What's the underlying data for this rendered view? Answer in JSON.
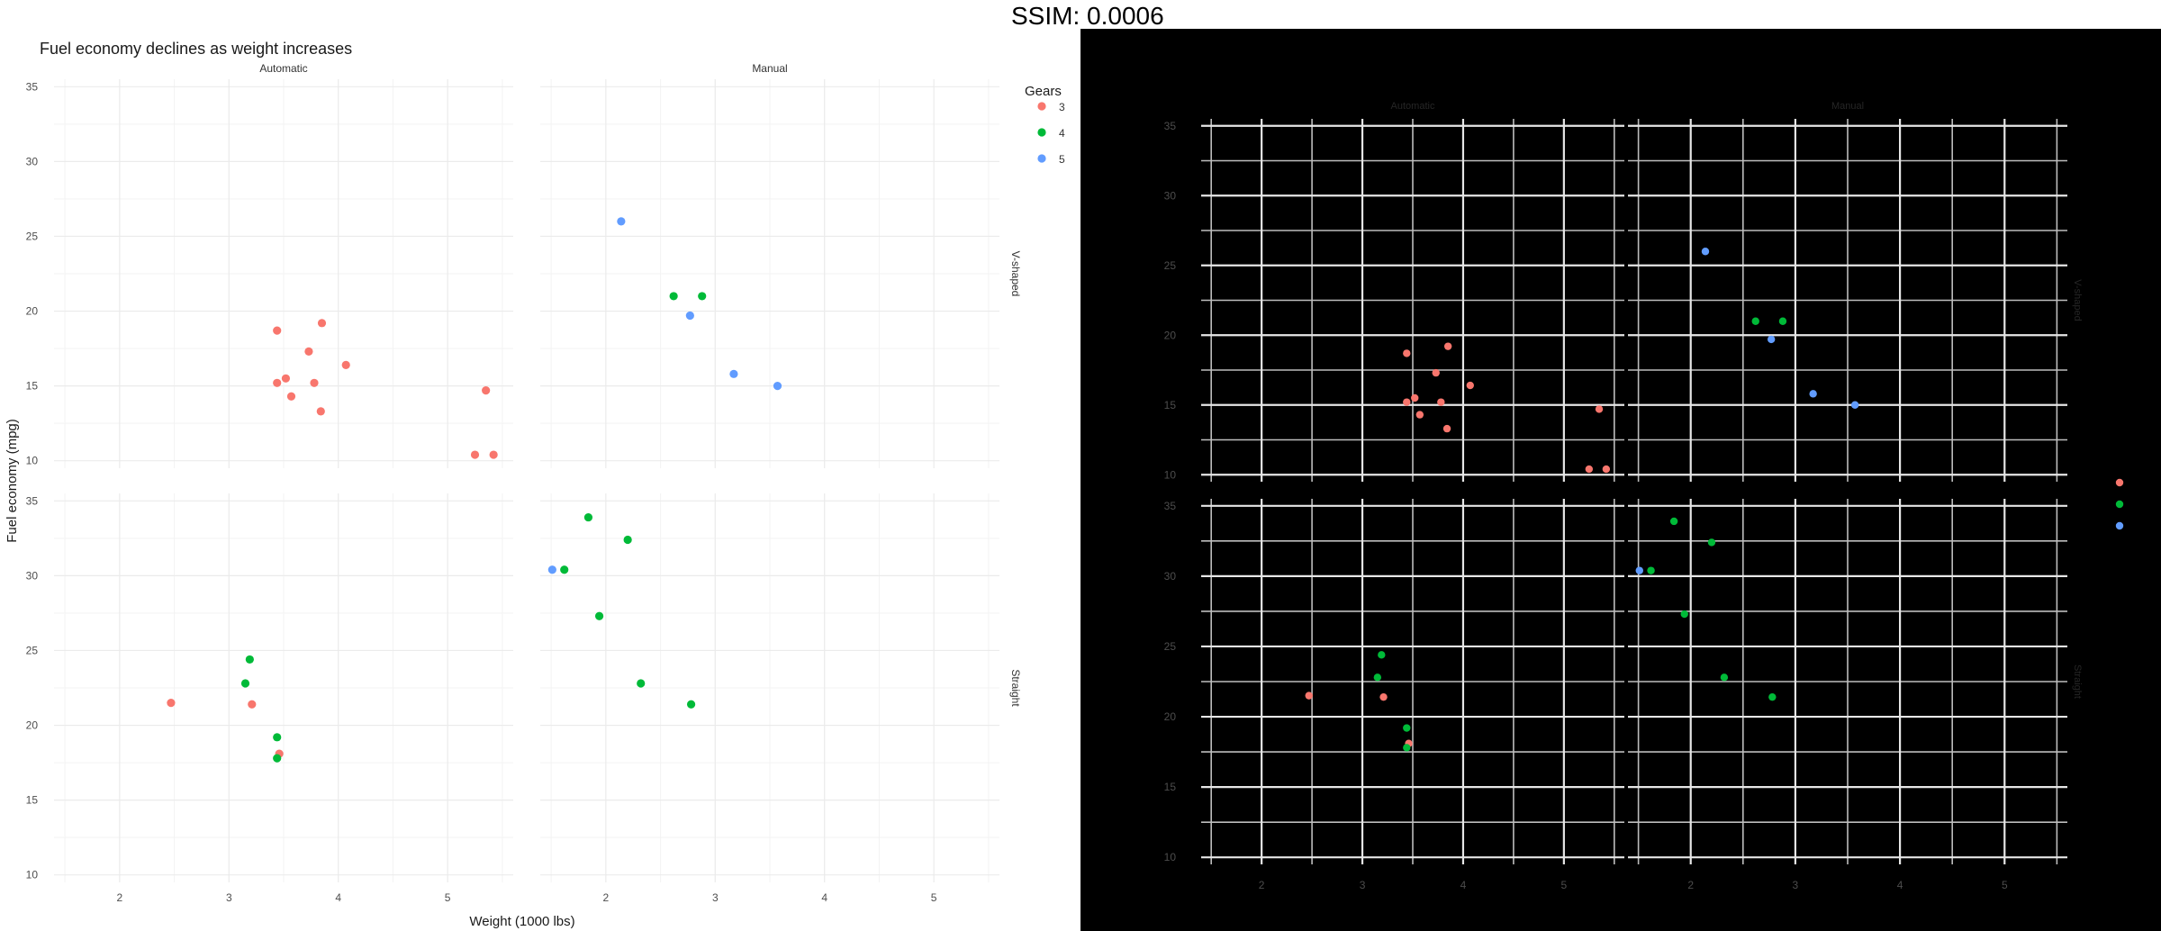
{
  "overlay": {
    "ssim_label": "SSIM: 0.0006"
  },
  "chart_data": {
    "type": "scatter",
    "title": "Fuel economy declines as weight increases",
    "xlabel": "Weight (1000 lbs)",
    "ylabel": "Fuel economy (mpg)",
    "xlim": [
      1.4,
      5.6
    ],
    "ylim": [
      9.5,
      35.5
    ],
    "x_ticks": [
      2,
      3,
      4,
      5
    ],
    "y_ticks": [
      10,
      15,
      20,
      25,
      30,
      35
    ],
    "facet_cols": [
      "Automatic",
      "Manual"
    ],
    "facet_rows": [
      "V-shaped",
      "Straight"
    ],
    "legend": {
      "title": "Gears",
      "position": "right-top",
      "entries": [
        "3",
        "4",
        "5"
      ]
    },
    "colors": {
      "3": "#F8766D",
      "4": "#00BA38",
      "5": "#619CFF"
    },
    "grid": true,
    "panels": [
      {
        "row": 0,
        "col": 0,
        "points": [
          {
            "x": 3.44,
            "y": 18.7,
            "g": "3"
          },
          {
            "x": 3.57,
            "y": 14.3,
            "g": "3"
          },
          {
            "x": 4.07,
            "y": 16.4,
            "g": "3"
          },
          {
            "x": 3.73,
            "y": 17.3,
            "g": "3"
          },
          {
            "x": 3.78,
            "y": 15.2,
            "g": "3"
          },
          {
            "x": 5.25,
            "y": 10.4,
            "g": "3"
          },
          {
            "x": 5.42,
            "y": 10.4,
            "g": "3"
          },
          {
            "x": 5.35,
            "y": 14.7,
            "g": "3"
          },
          {
            "x": 3.52,
            "y": 15.5,
            "g": "3"
          },
          {
            "x": 3.44,
            "y": 15.2,
            "g": "3"
          },
          {
            "x": 3.84,
            "y": 13.3,
            "g": "3"
          },
          {
            "x": 3.85,
            "y": 19.2,
            "g": "3"
          }
        ]
      },
      {
        "row": 0,
        "col": 1,
        "points": [
          {
            "x": 2.62,
            "y": 21.0,
            "g": "4"
          },
          {
            "x": 2.88,
            "y": 21.0,
            "g": "4"
          },
          {
            "x": 2.14,
            "y": 26.0,
            "g": "5"
          },
          {
            "x": 3.17,
            "y": 15.8,
            "g": "5"
          },
          {
            "x": 2.77,
            "y": 19.7,
            "g": "5"
          },
          {
            "x": 3.57,
            "y": 15.0,
            "g": "5"
          }
        ]
      },
      {
        "row": 1,
        "col": 0,
        "points": [
          {
            "x": 3.21,
            "y": 21.4,
            "g": "3"
          },
          {
            "x": 3.46,
            "y": 18.1,
            "g": "3"
          },
          {
            "x": 2.47,
            "y": 21.5,
            "g": "3"
          },
          {
            "x": 3.19,
            "y": 24.4,
            "g": "4"
          },
          {
            "x": 3.15,
            "y": 22.8,
            "g": "4"
          },
          {
            "x": 3.44,
            "y": 19.2,
            "g": "4"
          },
          {
            "x": 3.44,
            "y": 17.8,
            "g": "4"
          }
        ]
      },
      {
        "row": 1,
        "col": 1,
        "points": [
          {
            "x": 2.32,
            "y": 22.8,
            "g": "4"
          },
          {
            "x": 2.2,
            "y": 32.4,
            "g": "4"
          },
          {
            "x": 1.62,
            "y": 30.4,
            "g": "4"
          },
          {
            "x": 1.84,
            "y": 33.9,
            "g": "4"
          },
          {
            "x": 1.94,
            "y": 27.3,
            "g": "4"
          },
          {
            "x": 2.78,
            "y": 21.4,
            "g": "4"
          },
          {
            "x": 1.51,
            "y": 30.4,
            "g": "5"
          }
        ]
      }
    ]
  }
}
